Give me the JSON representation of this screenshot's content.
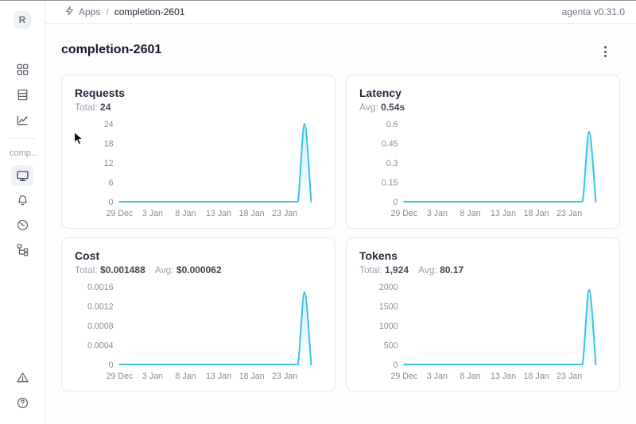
{
  "header": {
    "breadcrumb": {
      "apps": "Apps",
      "separator": "/",
      "current": "completion-2601"
    },
    "version": "agenta v0.31.0"
  },
  "sidebar": {
    "avatar_letter": "R",
    "workspace_label": "comp...",
    "top_icons": [
      "squares-grid-icon",
      "list-rows-icon",
      "chart-line-icon"
    ],
    "app_icons": [
      "monitor-icon",
      "bell-icon",
      "gauge-icon",
      "tree-structure-icon"
    ],
    "bottom_icons": [
      "warning-triangle-icon",
      "help-circle-icon"
    ],
    "selected_item": "overview"
  },
  "page": {
    "title": "completion-2601"
  },
  "colors": {
    "accent_line": "#36c3e2",
    "accent_fill": "rgba(54,195,226,0.28)",
    "selected_bg": "#eef1f5"
  },
  "chart_data": [
    {
      "type": "line",
      "title": "Requests",
      "stats": [
        {
          "label": "Total:",
          "value": "24"
        }
      ],
      "x": [
        "29 Dec",
        "30 Dec",
        "31 Dec",
        "1 Jan",
        "2 Jan",
        "3 Jan",
        "4 Jan",
        "5 Jan",
        "6 Jan",
        "7 Jan",
        "8 Jan",
        "9 Jan",
        "10 Jan",
        "11 Jan",
        "12 Jan",
        "13 Jan",
        "14 Jan",
        "15 Jan",
        "16 Jan",
        "17 Jan",
        "18 Jan",
        "19 Jan",
        "20 Jan",
        "21 Jan",
        "22 Jan",
        "23 Jan",
        "24 Jan",
        "25 Jan",
        "26 Jan",
        "27 Jan"
      ],
      "values": [
        0,
        0,
        0,
        0,
        0,
        0,
        0,
        0,
        0,
        0,
        0,
        0,
        0,
        0,
        0,
        0,
        0,
        0,
        0,
        0,
        0,
        0,
        0,
        0,
        0,
        0,
        0,
        0,
        24,
        0
      ],
      "x_ticks": [
        "29 Dec",
        "3 Jan",
        "8 Jan",
        "13 Jan",
        "18 Jan",
        "23 Jan"
      ],
      "y_ticks": [
        "0",
        "6",
        "12",
        "18",
        "24"
      ],
      "ylim": [
        0,
        24
      ],
      "grid": false,
      "legend": false
    },
    {
      "type": "line",
      "title": "Latency",
      "stats": [
        {
          "label": "Avg:",
          "value": "0.54s"
        }
      ],
      "x": [
        "29 Dec",
        "30 Dec",
        "31 Dec",
        "1 Jan",
        "2 Jan",
        "3 Jan",
        "4 Jan",
        "5 Jan",
        "6 Jan",
        "7 Jan",
        "8 Jan",
        "9 Jan",
        "10 Jan",
        "11 Jan",
        "12 Jan",
        "13 Jan",
        "14 Jan",
        "15 Jan",
        "16 Jan",
        "17 Jan",
        "18 Jan",
        "19 Jan",
        "20 Jan",
        "21 Jan",
        "22 Jan",
        "23 Jan",
        "24 Jan",
        "25 Jan",
        "26 Jan",
        "27 Jan"
      ],
      "values": [
        0,
        0,
        0,
        0,
        0,
        0,
        0,
        0,
        0,
        0,
        0,
        0,
        0,
        0,
        0,
        0,
        0,
        0,
        0,
        0,
        0,
        0,
        0,
        0,
        0,
        0,
        0,
        0,
        0.54,
        0
      ],
      "x_ticks": [
        "29 Dec",
        "3 Jan",
        "8 Jan",
        "13 Jan",
        "18 Jan",
        "23 Jan"
      ],
      "y_ticks": [
        "0",
        "0.15",
        "0.3",
        "0.45",
        "0.6"
      ],
      "ylim": [
        0,
        0.6
      ],
      "grid": false,
      "legend": false
    },
    {
      "type": "line",
      "title": "Cost",
      "stats": [
        {
          "label": "Total:",
          "value": "$0.001488"
        },
        {
          "label": "Avg:",
          "value": "$0.000062"
        }
      ],
      "x": [
        "29 Dec",
        "30 Dec",
        "31 Dec",
        "1 Jan",
        "2 Jan",
        "3 Jan",
        "4 Jan",
        "5 Jan",
        "6 Jan",
        "7 Jan",
        "8 Jan",
        "9 Jan",
        "10 Jan",
        "11 Jan",
        "12 Jan",
        "13 Jan",
        "14 Jan",
        "15 Jan",
        "16 Jan",
        "17 Jan",
        "18 Jan",
        "19 Jan",
        "20 Jan",
        "21 Jan",
        "22 Jan",
        "23 Jan",
        "24 Jan",
        "25 Jan",
        "26 Jan",
        "27 Jan"
      ],
      "values": [
        0,
        0,
        0,
        0,
        0,
        0,
        0,
        0,
        0,
        0,
        0,
        0,
        0,
        0,
        0,
        0,
        0,
        0,
        0,
        0,
        0,
        0,
        0,
        0,
        0,
        0,
        0,
        0,
        0.001488,
        0
      ],
      "x_ticks": [
        "29 Dec",
        "3 Jan",
        "8 Jan",
        "13 Jan",
        "18 Jan",
        "23 Jan"
      ],
      "y_ticks": [
        "0",
        "0.0004",
        "0.0008",
        "0.0012",
        "0.0016"
      ],
      "ylim": [
        0,
        0.0016
      ],
      "grid": false,
      "legend": false
    },
    {
      "type": "line",
      "title": "Tokens",
      "stats": [
        {
          "label": "Total:",
          "value": "1,924"
        },
        {
          "label": "Avg:",
          "value": "80.17"
        }
      ],
      "x": [
        "29 Dec",
        "30 Dec",
        "31 Dec",
        "1 Jan",
        "2 Jan",
        "3 Jan",
        "4 Jan",
        "5 Jan",
        "6 Jan",
        "7 Jan",
        "8 Jan",
        "9 Jan",
        "10 Jan",
        "11 Jan",
        "12 Jan",
        "13 Jan",
        "14 Jan",
        "15 Jan",
        "16 Jan",
        "17 Jan",
        "18 Jan",
        "19 Jan",
        "20 Jan",
        "21 Jan",
        "22 Jan",
        "23 Jan",
        "24 Jan",
        "25 Jan",
        "26 Jan",
        "27 Jan"
      ],
      "values": [
        0,
        0,
        0,
        0,
        0,
        0,
        0,
        0,
        0,
        0,
        0,
        0,
        0,
        0,
        0,
        0,
        0,
        0,
        0,
        0,
        0,
        0,
        0,
        0,
        0,
        0,
        0,
        0,
        1924,
        0
      ],
      "x_ticks": [
        "29 Dec",
        "3 Jan",
        "8 Jan",
        "13 Jan",
        "18 Jan",
        "23 Jan"
      ],
      "y_ticks": [
        "0",
        "500",
        "1000",
        "1500",
        "2000"
      ],
      "ylim": [
        0,
        2000
      ],
      "grid": false,
      "legend": false
    }
  ]
}
